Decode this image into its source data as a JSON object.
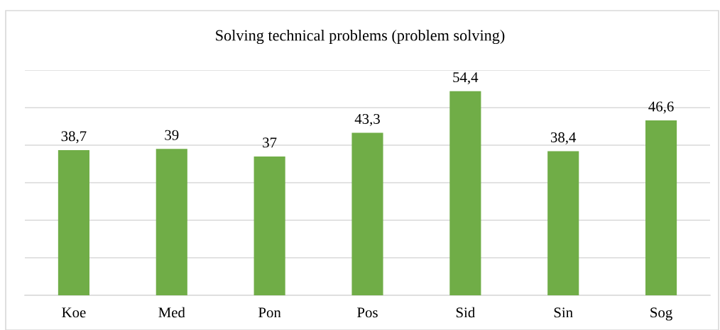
{
  "chart_data": {
    "type": "bar",
    "title": "Solving technical problems (problem solving)",
    "categories": [
      "Koe",
      "Med",
      "Pon",
      "Pos",
      "Sid",
      "Sin",
      "Sog"
    ],
    "values": [
      38.7,
      39,
      37,
      43.3,
      54.4,
      38.4,
      46.6
    ],
    "value_labels": [
      "38,7",
      "39",
      "37",
      "43,3",
      "54,4",
      "38,4",
      "46,6"
    ],
    "color": "#70ad47",
    "ylim": [
      0,
      60
    ],
    "yticks": [
      {
        "value": 0,
        "label": null
      },
      {
        "value": 10,
        "label": null
      },
      {
        "value": 20,
        "label": null
      },
      {
        "value": 30,
        "label": null
      },
      {
        "value": 40,
        "label": null
      },
      {
        "value": 50,
        "label": null
      },
      {
        "value": 60,
        "label": null
      }
    ],
    "tick_labels": "x",
    "grid": "y",
    "legend": false
  }
}
